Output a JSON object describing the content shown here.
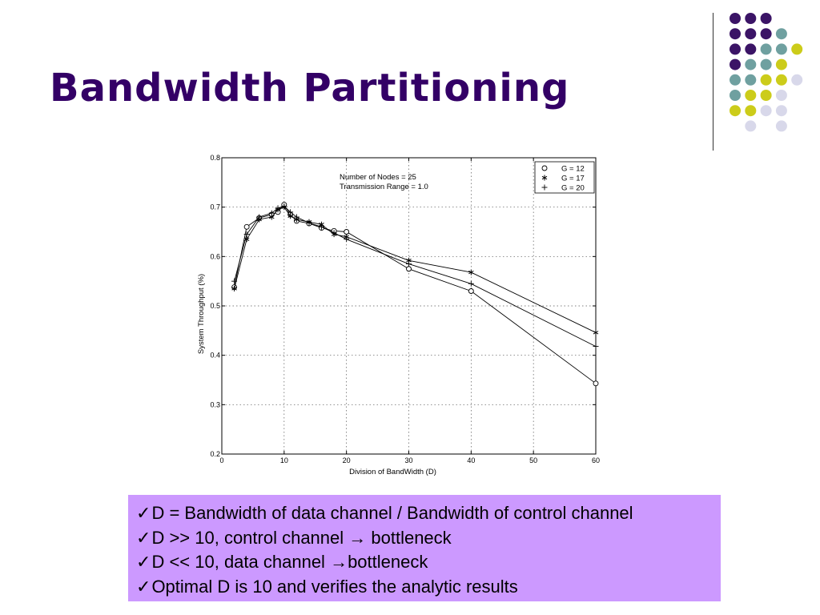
{
  "slide": {
    "title": "Bandwidth Partitioning",
    "notes": [
      {
        "text": "D = Bandwidth of data channel / Bandwidth of control channel"
      },
      {
        "text": "D >> 10, control channel ",
        "arrow": "→",
        "tail": " bottleneck"
      },
      {
        "text": "D << 10, data channel ",
        "arrow": "→",
        "tail": "bottleneck"
      },
      {
        "text": "Optimal D is 10 and verifies the analytic results"
      }
    ],
    "check_glyph": "✓",
    "colors": {
      "title": "#330066",
      "notes_bg": "#cc99ff",
      "dot_purple": "#3b1466",
      "dot_teal": "#6fa0a0",
      "dot_yellow": "#cccc1a",
      "dot_lavender": "#d8d8ea"
    },
    "decor_dot_rows": [
      [
        "purple",
        "purple",
        "purple"
      ],
      [
        "purple",
        "purple",
        "purple",
        "teal"
      ],
      [
        "purple",
        "purple",
        "teal",
        "teal",
        "yellow"
      ],
      [
        "purple",
        "teal",
        "teal",
        "yellow"
      ],
      [
        "teal",
        "teal",
        "yellow",
        "yellow",
        "lavender"
      ],
      [
        "teal",
        "yellow",
        "yellow",
        "lavender"
      ],
      [
        "yellow",
        "yellow",
        "lavender",
        "lavender"
      ],
      [
        "lavender",
        "lavender"
      ]
    ]
  },
  "chart_data": {
    "type": "line",
    "xlabel": "Division of BandWidth (D)",
    "ylabel": "System Throughput (%)",
    "xlim": [
      0,
      60
    ],
    "ylim": [
      0.2,
      0.8
    ],
    "xticks": [
      0,
      10,
      20,
      30,
      40,
      50,
      60
    ],
    "yticks": [
      0.2,
      0.3,
      0.4,
      0.5,
      0.6,
      0.7,
      0.8
    ],
    "grid": true,
    "legend_position": "top-right",
    "annotation": [
      "Number of Nodes = 25",
      "Transmission Range = 1.0"
    ],
    "series": [
      {
        "name": "G = 12",
        "marker": "circle",
        "x": [
          2,
          4,
          6,
          8,
          9,
          10,
          11,
          12,
          14,
          16,
          18,
          20,
          30,
          40,
          60
        ],
        "y": [
          0.538,
          0.66,
          0.678,
          0.685,
          0.69,
          0.705,
          0.685,
          0.672,
          0.667,
          0.658,
          0.652,
          0.65,
          0.575,
          0.53,
          0.343
        ]
      },
      {
        "name": "G = 17",
        "marker": "star",
        "x": [
          2,
          4,
          6,
          8,
          9,
          10,
          11,
          12,
          14,
          16,
          18,
          20,
          30,
          40,
          60
        ],
        "y": [
          0.535,
          0.635,
          0.675,
          0.68,
          0.695,
          0.7,
          0.682,
          0.675,
          0.67,
          0.665,
          0.645,
          0.64,
          0.592,
          0.568,
          0.446
        ]
      },
      {
        "name": "G = 20",
        "marker": "plus",
        "x": [
          2,
          4,
          6,
          8,
          9,
          10,
          11,
          12,
          14,
          16,
          18,
          20,
          30,
          40,
          60
        ],
        "y": [
          0.55,
          0.645,
          0.68,
          0.688,
          0.698,
          0.702,
          0.69,
          0.68,
          0.668,
          0.66,
          0.648,
          0.635,
          0.585,
          0.545,
          0.418
        ]
      }
    ]
  }
}
